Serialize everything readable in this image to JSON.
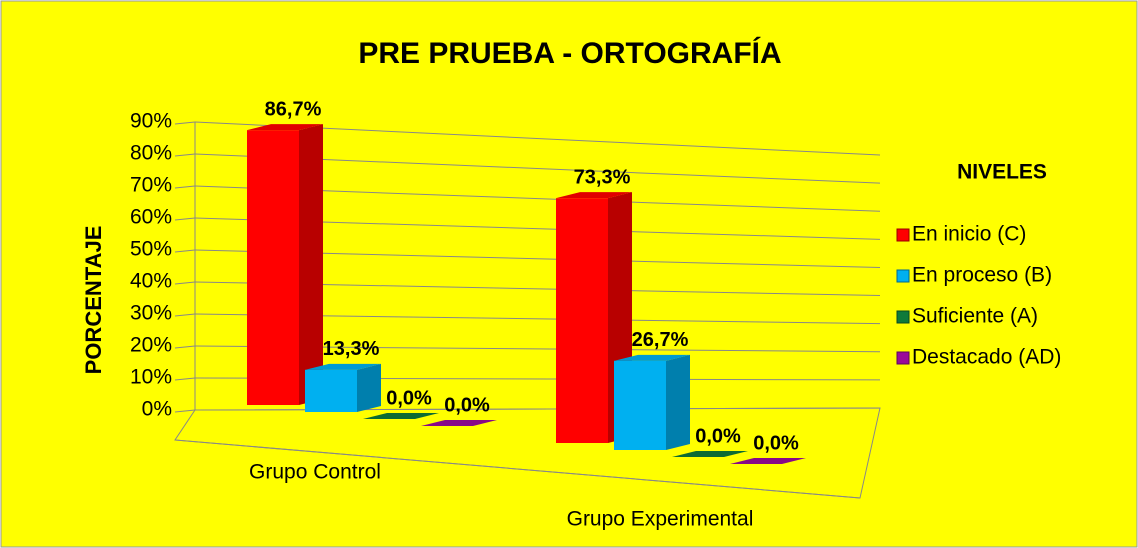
{
  "chart_data": {
    "type": "bar3d",
    "title": "PRE PRUEBA -  ORTOGRAFÍA",
    "y_label": "PORCENTAJE",
    "legend_title": "NIVELES",
    "legend": "right",
    "categories": [
      "Grupo Control",
      "Grupo Experimental"
    ],
    "series": [
      {
        "name": "En inicio (C)",
        "color": "#ff0000",
        "values": [
          86.7,
          73.3
        ],
        "value_labels": [
          "86,7%",
          "73,3%"
        ]
      },
      {
        "name": "En proceso (B)",
        "color": "#00b0f0",
        "values": [
          13.3,
          26.7
        ],
        "value_labels": [
          "13,3%",
          "26,7%"
        ]
      },
      {
        "name": "Suficiente (A)",
        "color": "#0f7a3a",
        "values": [
          0,
          0
        ],
        "value_labels": [
          "0,0%",
          "0,0%"
        ]
      },
      {
        "name": "Destacado (AD)",
        "color": "#9a0a9a",
        "values": [
          0,
          0
        ],
        "value_labels": [
          "0,0%",
          "0,0%"
        ]
      }
    ],
    "ylim": [
      0,
      90
    ],
    "yticks": [
      {
        "value": 0,
        "label": "0%"
      },
      {
        "value": 10,
        "label": "10%"
      },
      {
        "value": 20,
        "label": "20%"
      },
      {
        "value": 30,
        "label": "30%"
      },
      {
        "value": 40,
        "label": "40%"
      },
      {
        "value": 50,
        "label": "50%"
      },
      {
        "value": 60,
        "label": "60%"
      },
      {
        "value": 70,
        "label": "70%"
      },
      {
        "value": 80,
        "label": "80%"
      },
      {
        "value": 90,
        "label": "90%"
      }
    ],
    "grid": true
  }
}
